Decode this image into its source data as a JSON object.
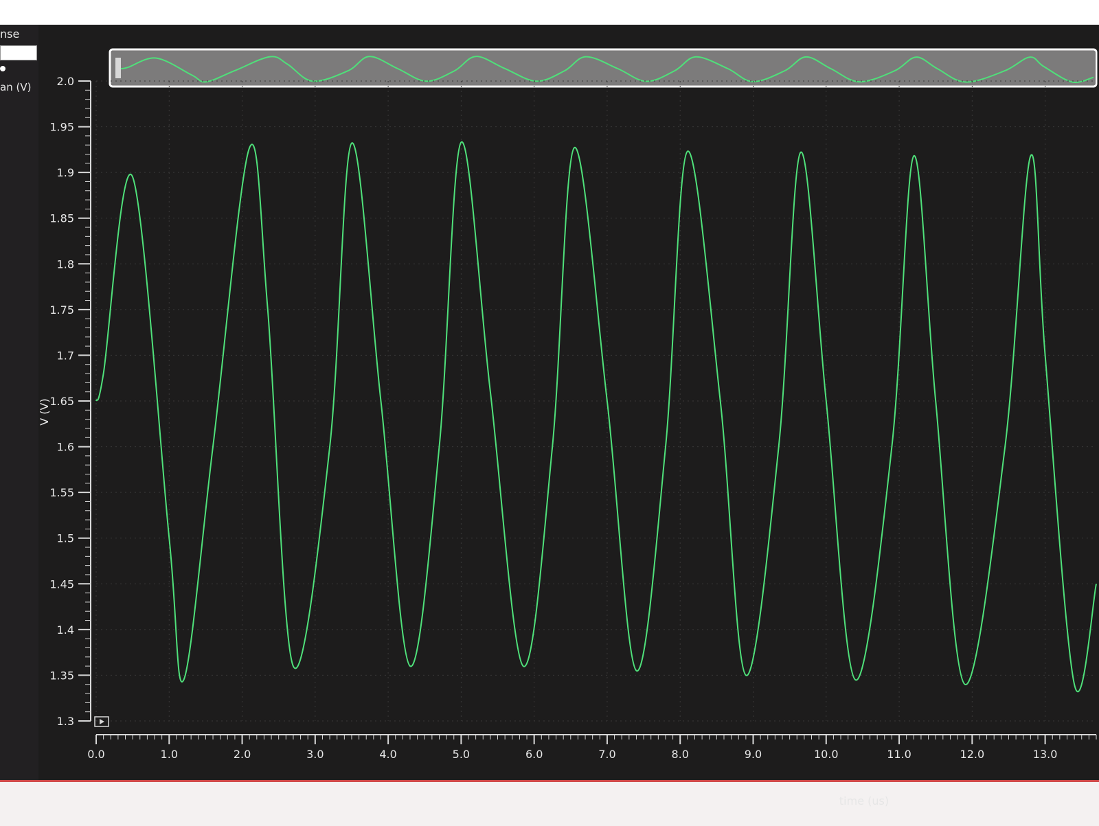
{
  "left_panel": {
    "title_fragment": "nse",
    "signal_label_fragment": "an (V)"
  },
  "colors": {
    "trace": "#4fe07a",
    "background": "#1d1c1c",
    "axis": "#d8d8d8",
    "accent": "#d04a4a"
  },
  "chart_data": {
    "type": "line",
    "title": "",
    "xlabel": "time (us)",
    "ylabel": "V (V)",
    "xlim": [
      0.0,
      13.7
    ],
    "ylim": [
      1.3,
      2.0
    ],
    "x_ticks": [
      "0.0",
      "1.0",
      "2.0",
      "3.0",
      "4.0",
      "5.0",
      "6.0",
      "7.0",
      "8.0",
      "9.0",
      "10.0",
      "11.0",
      "12.0",
      "13.0"
    ],
    "y_ticks": [
      "1.3",
      "1.35",
      "1.4",
      "1.45",
      "1.5",
      "1.55",
      "1.6",
      "1.65",
      "1.7",
      "1.75",
      "1.8",
      "1.85",
      "1.9",
      "1.95",
      "2.0"
    ],
    "grid": true,
    "series": [
      {
        "x": [
          0.0,
          0.1,
          0.5,
          1.0,
          1.2,
          1.6,
          2.1,
          2.35,
          2.7,
          3.2,
          3.5,
          3.9,
          4.3,
          4.7,
          5.0,
          5.4,
          5.85,
          6.25,
          6.55,
          7.0,
          7.4,
          7.8,
          8.1,
          8.55,
          8.9,
          9.35,
          9.65,
          10.0,
          10.4,
          10.9,
          11.2,
          11.5,
          11.9,
          12.45,
          12.8,
          13.0,
          13.4,
          13.7
        ],
        "y": [
          1.65,
          1.68,
          1.895,
          1.5,
          1.345,
          1.6,
          1.927,
          1.75,
          1.36,
          1.6,
          1.932,
          1.65,
          1.36,
          1.6,
          1.933,
          1.66,
          1.36,
          1.6,
          1.927,
          1.65,
          1.355,
          1.6,
          1.923,
          1.65,
          1.35,
          1.6,
          1.922,
          1.65,
          1.345,
          1.6,
          1.918,
          1.65,
          1.34,
          1.6,
          1.918,
          1.7,
          1.34,
          1.45
        ]
      }
    ]
  }
}
